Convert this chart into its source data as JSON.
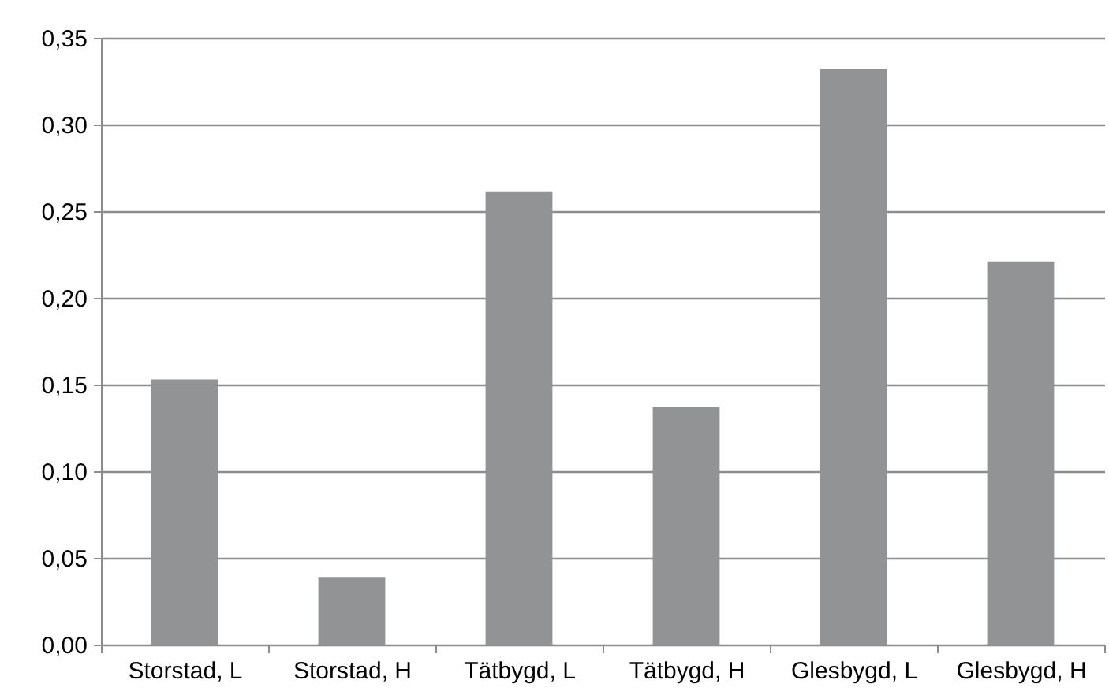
{
  "chart_data": {
    "type": "bar",
    "categories": [
      "Storstad, L",
      "Storstad, H",
      "Tätbygd, L",
      "Tätbygd, H",
      "Glesbygd, L",
      "Glesbygd, H"
    ],
    "values": [
      0.153,
      0.039,
      0.261,
      0.137,
      0.332,
      0.221
    ],
    "color": "#929395",
    "ylim": [
      0,
      0.35
    ],
    "yticks": [
      {
        "value": 0,
        "label": "0,00"
      },
      {
        "value": 0.05,
        "label": "0,05"
      },
      {
        "value": 0.1,
        "label": "0,10"
      },
      {
        "value": 0.15,
        "label": "0,15"
      },
      {
        "value": 0.2,
        "label": "0,20"
      },
      {
        "value": 0.25,
        "label": "0,25"
      },
      {
        "value": 0.3,
        "label": "0,30"
      },
      {
        "value": 0.35,
        "label": "0,35"
      }
    ],
    "grid": "y"
  }
}
